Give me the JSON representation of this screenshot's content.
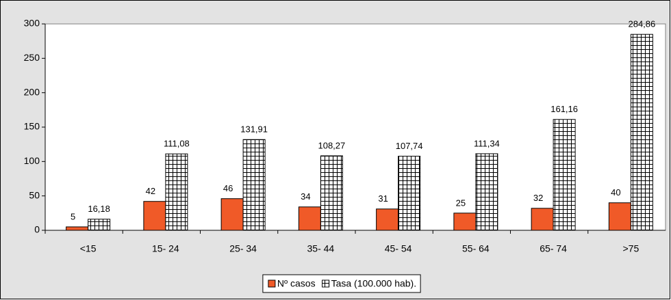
{
  "chart_data": {
    "type": "bar",
    "categories": [
      "<15",
      "15- 24",
      "25- 34",
      "35- 44",
      "45- 54",
      "55- 64",
      "65- 74",
      ">75"
    ],
    "series": [
      {
        "name": "Nº casos",
        "color": "#f05a28",
        "values": [
          5,
          42,
          46,
          34,
          31,
          25,
          32,
          40
        ]
      },
      {
        "name": "Tasa (100.000 hab).",
        "color": "#ffffff",
        "pattern": "grid",
        "values": [
          16.18,
          111.08,
          131.91,
          108.27,
          107.74,
          111.34,
          161.16,
          284.86
        ],
        "value_labels": [
          "16,18",
          "111,08",
          "131,91",
          "108,27",
          "107,74",
          "111,34",
          "161,16",
          "284,86"
        ]
      }
    ],
    "ylim": [
      0,
      300
    ],
    "yticks": [
      0,
      50,
      100,
      150,
      200,
      250,
      300
    ],
    "grid": false,
    "legend": "bottom"
  }
}
